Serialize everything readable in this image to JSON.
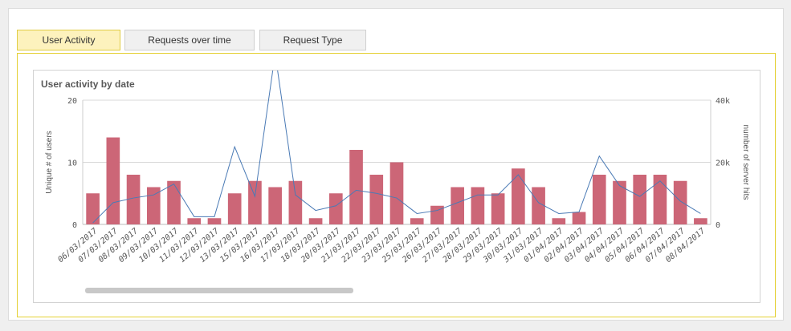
{
  "tabs": [
    {
      "label": "User Activity",
      "active": true
    },
    {
      "label": "Requests over time",
      "active": false
    },
    {
      "label": "Request Type",
      "active": false
    }
  ],
  "card": {
    "title": "User activity by date"
  },
  "chart_data": {
    "type": "bar",
    "title": "User activity by date",
    "ylabel": "Unique # of users",
    "y2label": "number of server hits",
    "ylim": [
      0,
      20
    ],
    "y2lim": [
      0,
      40000
    ],
    "yticks": [
      "0",
      "10",
      "20"
    ],
    "y2ticks": [
      "0",
      "20k",
      "40k"
    ],
    "grid": true,
    "categories": [
      "06/03/2017",
      "07/03/2017",
      "08/03/2017",
      "09/03/2017",
      "10/03/2017",
      "11/03/2017",
      "12/03/2017",
      "13/03/2017",
      "15/03/2017",
      "16/03/2017",
      "17/03/2017",
      "18/03/2017",
      "20/03/2017",
      "21/03/2017",
      "22/03/2017",
      "23/03/2017",
      "25/03/2017",
      "26/03/2017",
      "27/03/2017",
      "28/03/2017",
      "29/03/2017",
      "30/03/2017",
      "31/03/2017",
      "01/04/2017",
      "02/04/2017",
      "03/04/2017",
      "04/04/2017",
      "05/04/2017",
      "06/04/2017",
      "07/04/2017",
      "08/04/2017"
    ],
    "series": [
      {
        "type": "bar",
        "axis": "left",
        "color": "#cc6677",
        "values": [
          5,
          14,
          8,
          6,
          7,
          1,
          1,
          5,
          7,
          6,
          7,
          1,
          5,
          12,
          8,
          10,
          1,
          3,
          6,
          6,
          5,
          9,
          6,
          1,
          2,
          8,
          7,
          8,
          8,
          7,
          1
        ]
      },
      {
        "type": "line",
        "axis": "right",
        "color": "#4a7ab5",
        "values": [
          500,
          7000,
          8500,
          9500,
          13000,
          2500,
          2500,
          25000,
          9000,
          55000,
          9500,
          4500,
          6000,
          11000,
          10000,
          8500,
          3500,
          4500,
          7000,
          9500,
          9500,
          16000,
          7000,
          3500,
          4000,
          22000,
          12500,
          9000,
          14000,
          7500,
          3500
        ]
      }
    ]
  },
  "scrollbar": {
    "visible": true
  }
}
